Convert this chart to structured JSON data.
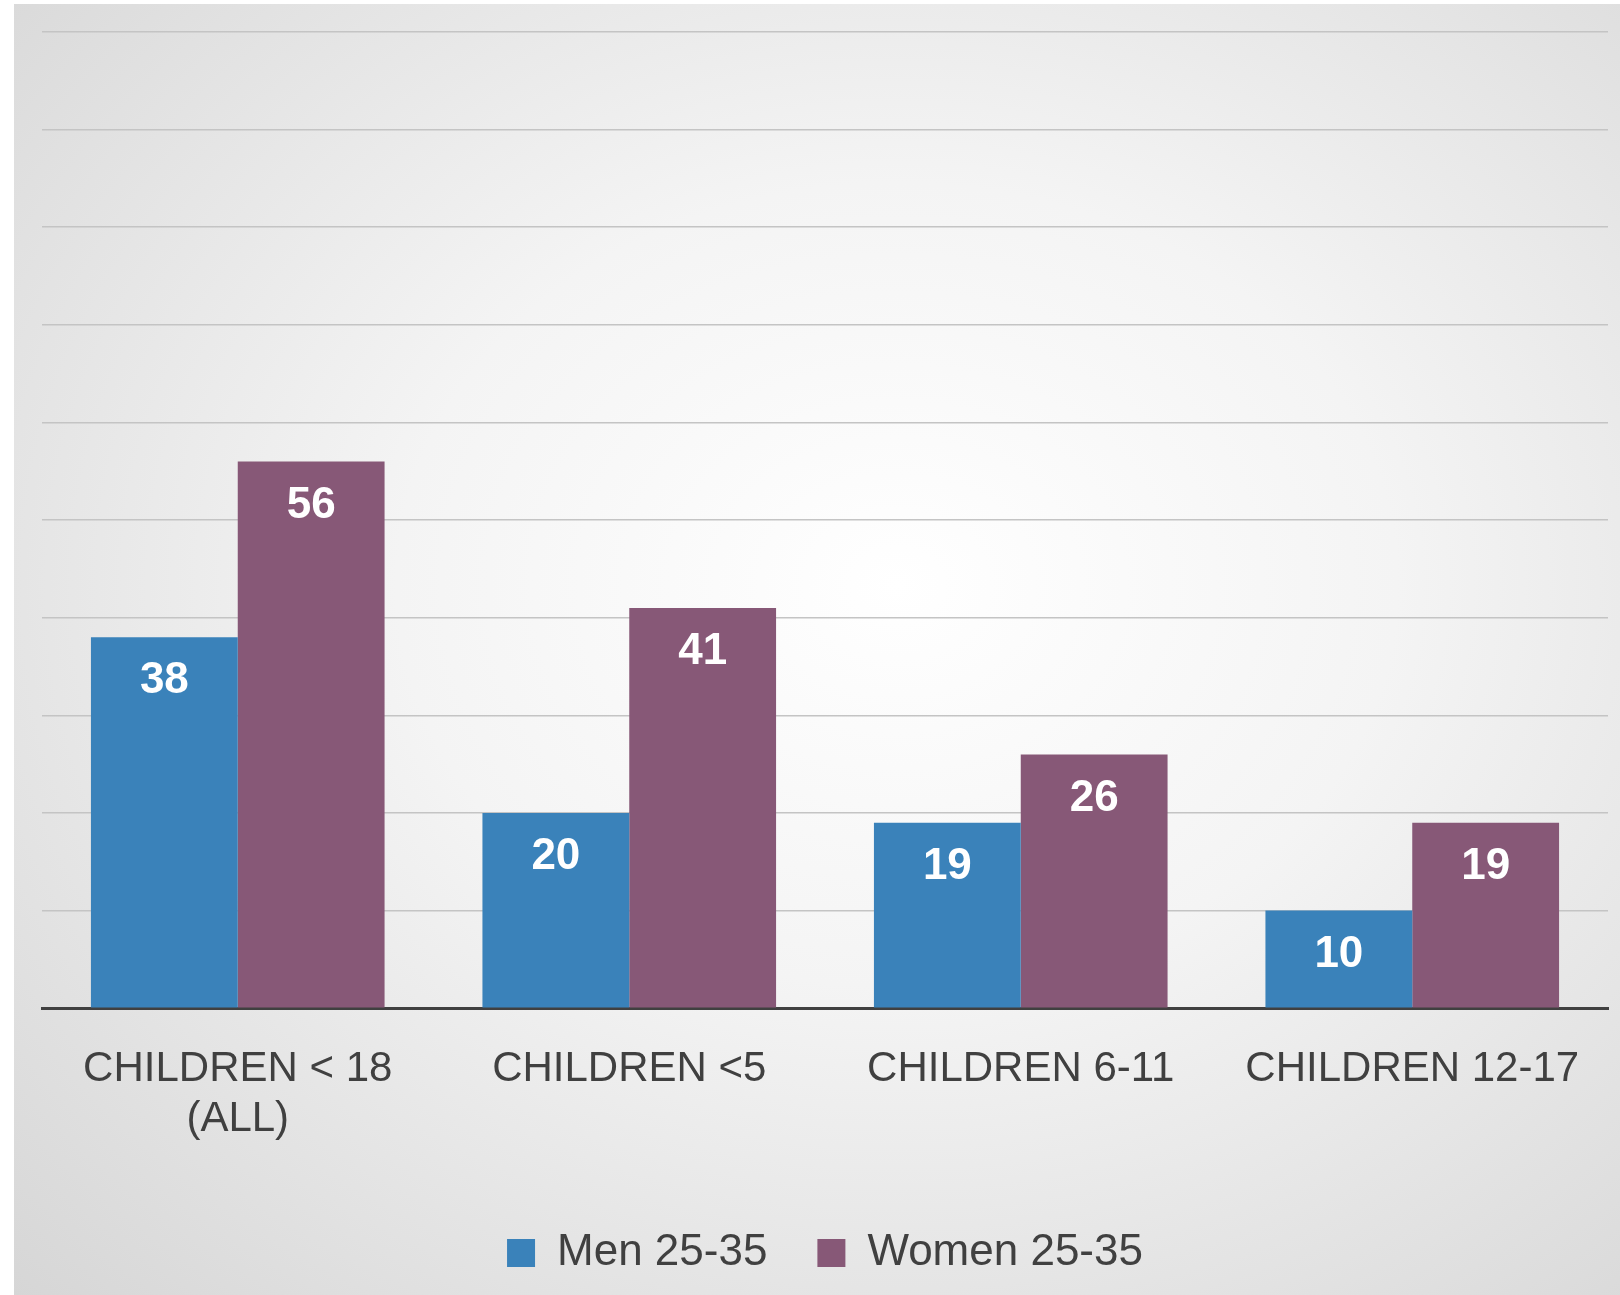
{
  "chart_data": {
    "type": "bar",
    "categories": [
      "CHILDREN < 18 (ALL)",
      "CHILDREN <5",
      "CHILDREN 6-11",
      "CHILDREN 12-17"
    ],
    "series": [
      {
        "name": "Men 25-35",
        "color": "#3a82ba",
        "values": [
          38,
          20,
          19,
          10
        ]
      },
      {
        "name": "Women 25-35",
        "color": "#875877",
        "values": [
          56,
          41,
          26,
          19
        ]
      }
    ],
    "ylim": [
      0,
      100
    ],
    "tick_labels": "x",
    "grid": "y",
    "legend": "bottom",
    "data_labels": true
  }
}
